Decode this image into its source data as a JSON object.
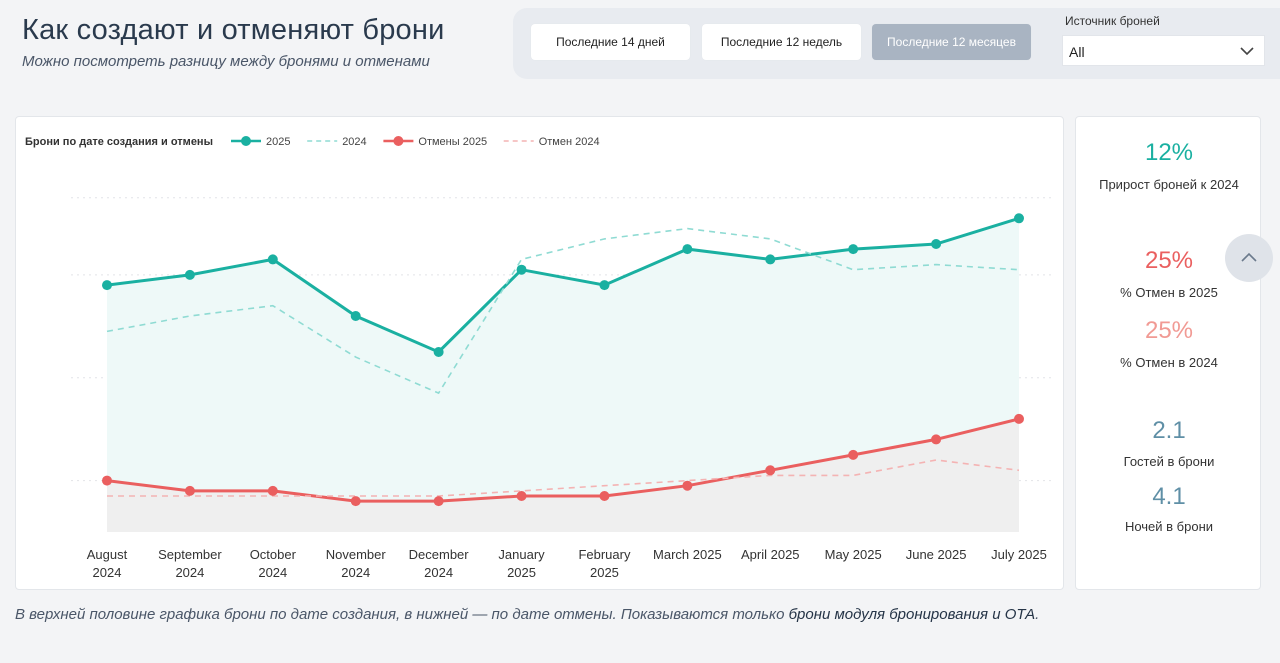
{
  "header": {
    "title": "Как создают и отменяют брони",
    "subtitle": "Можно посмотреть разницу между бронями и отменами"
  },
  "filters": {
    "periods": [
      "Последние 14 дней",
      "Последние 12 недель",
      "Последние 12 месяцев"
    ],
    "active_period": 2,
    "source_label": "Источник броней",
    "source_value": "All"
  },
  "chart_data": {
    "type": "line",
    "title": "Брони по дате создания и отмены",
    "categories": [
      [
        "August",
        "2024"
      ],
      [
        "September",
        "2024"
      ],
      [
        "October",
        "2024"
      ],
      [
        "November",
        "2024"
      ],
      [
        "December",
        "2024"
      ],
      [
        "January",
        "2025"
      ],
      [
        "February",
        "2025"
      ],
      [
        "March 2025"
      ],
      [
        "April 2025"
      ],
      [
        "May 2025"
      ],
      [
        "June 2025"
      ],
      [
        "July 2025"
      ]
    ],
    "series": [
      {
        "name": "2025",
        "values": [
          78,
          80,
          83,
          72,
          65,
          81,
          78,
          85,
          83,
          85,
          86,
          91
        ],
        "color": "#1ab0a1",
        "style": "solid",
        "markers": true
      },
      {
        "name": "2024",
        "values": [
          69,
          72,
          74,
          64,
          57,
          83,
          87,
          89,
          87,
          81,
          82,
          81
        ],
        "color": "#8fdbd3",
        "style": "dashed",
        "markers": false
      },
      {
        "name": "Отмены 2025",
        "values": [
          40,
          38,
          38,
          36,
          36,
          37,
          37,
          39,
          42,
          45,
          48,
          52
        ],
        "color": "#ea5f5f",
        "style": "solid",
        "markers": true
      },
      {
        "name": "Отмен 2024",
        "values": [
          37,
          37,
          37,
          37,
          37,
          38,
          39,
          40,
          41,
          41,
          44,
          42
        ],
        "color": "#f4b3b3",
        "style": "dashed",
        "markers": false
      }
    ],
    "ylim": [
      30,
      100
    ],
    "grid": true,
    "legend": "top-left"
  },
  "kpis": [
    {
      "value": "12%",
      "label": "Прирост броней к 2024",
      "color": "#1ab0a1"
    },
    {
      "value": "25%",
      "label": "% Отмен в 2025",
      "color": "#ea5f5f"
    },
    {
      "value": "25%",
      "label": "% Отмен в 2024",
      "color": "#f19a94"
    },
    {
      "value": "2.1",
      "label": "Гостей в брони",
      "color": "#5f8fa6"
    },
    {
      "value": "4.1",
      "label": "Ночей в брони",
      "color": "#5f8fa6"
    }
  ],
  "footnote": {
    "text": "В верхней половине графика брони по дате создания, в нижней — по дате отмены. Показываются только ",
    "link": "брони модуля бронирования и ОТА",
    "end": "."
  },
  "icons": {
    "dropdown": "chevron-down-icon",
    "scroll": "chevron-up-icon"
  }
}
